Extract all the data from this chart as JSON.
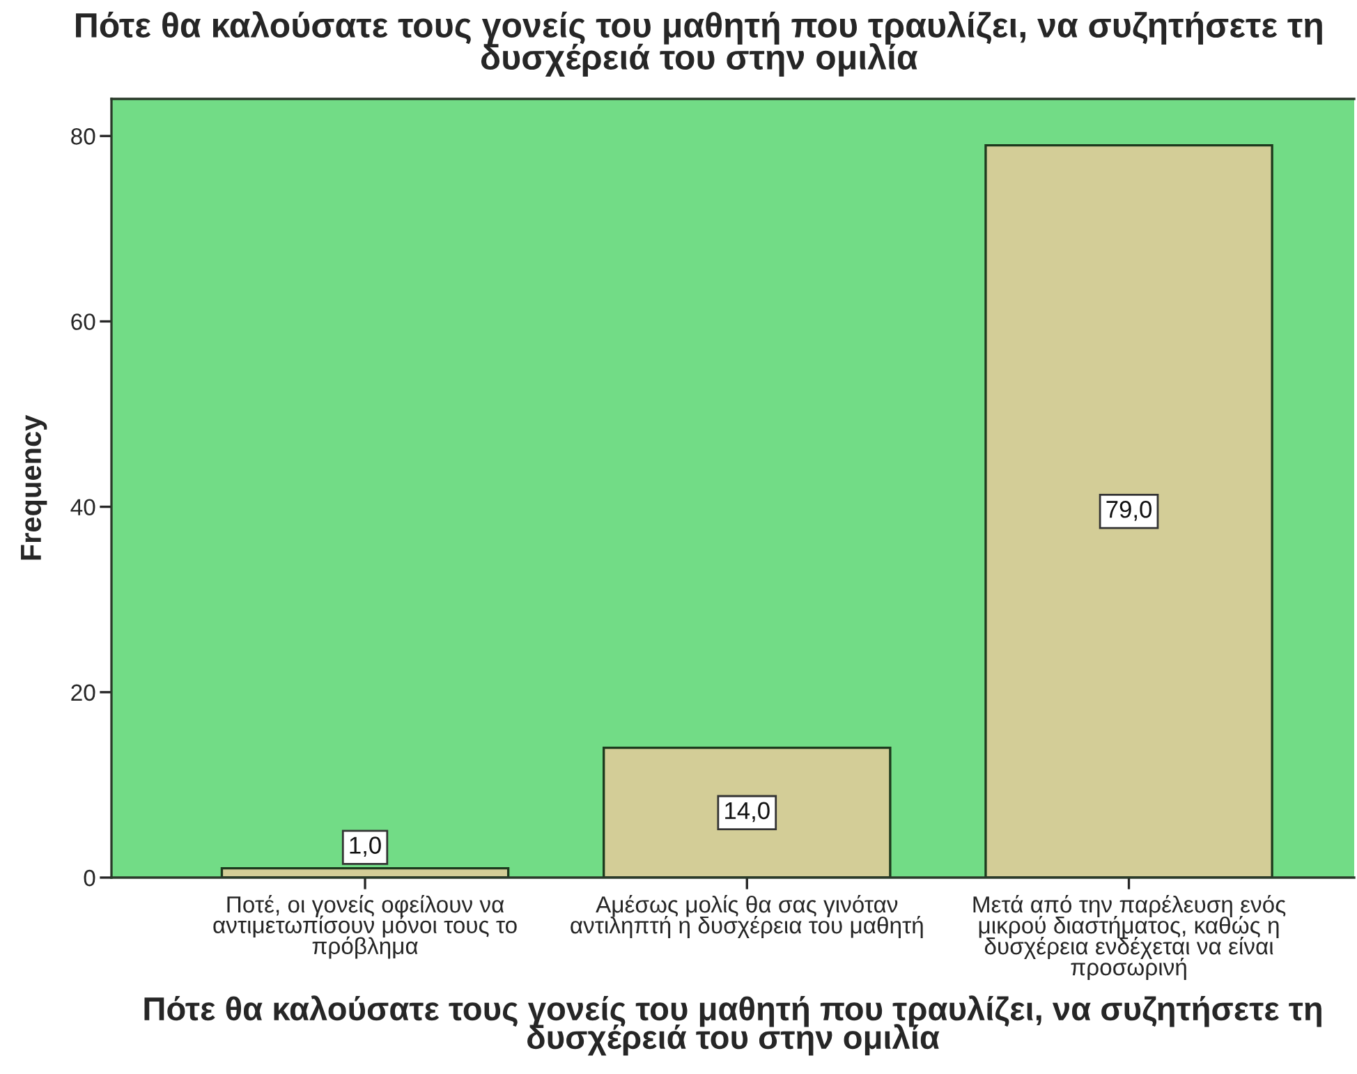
{
  "chart_data": {
    "type": "bar",
    "title": "Πότε θα καλούσατε τους γονείς του μαθητή που τραυλίζει, να συζητήσετε τη δυσχέρειά του στην ομιλία",
    "xlabel": "Πότε θα καλούσατε τους γονείς του μαθητή που τραυλίζει, να συζητήσετε τη δυσχέρειά του στην ομιλία",
    "ylabel": "Frequency",
    "categories": [
      "Ποτέ, οι γονείς οφείλουν να αντιμετωπίσουν μόνοι τους το πρόβλημα",
      "Αμέσως μολίς θα σας γινόταν αντιληπτή η δυσχέρεια του μαθητή",
      "Μετά από την παρέλευση ενός μικρού διαστήματος, καθώς η δυσχέρεια ενδέχεται να είναι προσωρινή"
    ],
    "values": [
      1,
      14,
      79
    ],
    "color": "#d3cd97",
    "value_labels": [
      "1,0",
      "14,0",
      "79,0"
    ],
    "ylim": [
      0,
      84
    ],
    "yticks": [
      0,
      20,
      40,
      60,
      80
    ]
  }
}
